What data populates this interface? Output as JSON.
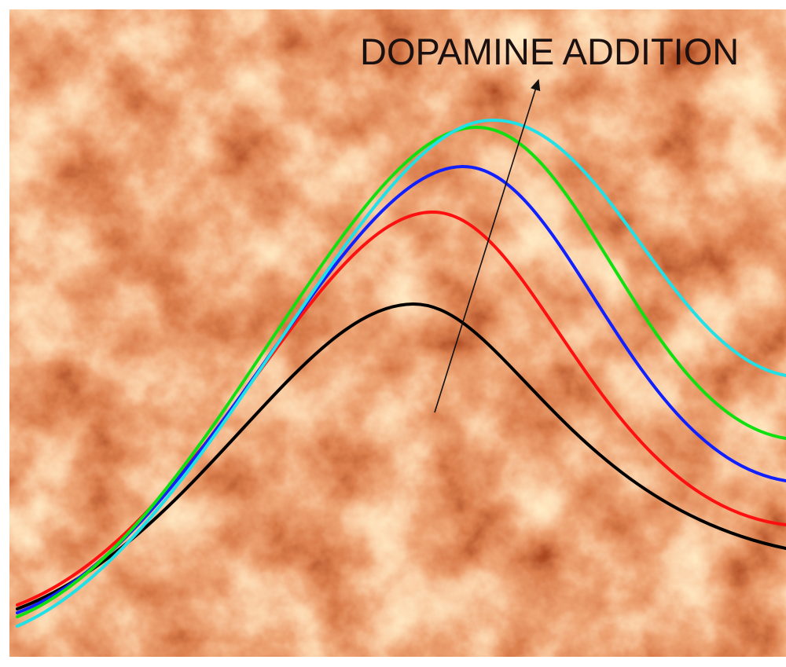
{
  "annotation": {
    "label": "DOPAMINE ADDITION"
  }
}
